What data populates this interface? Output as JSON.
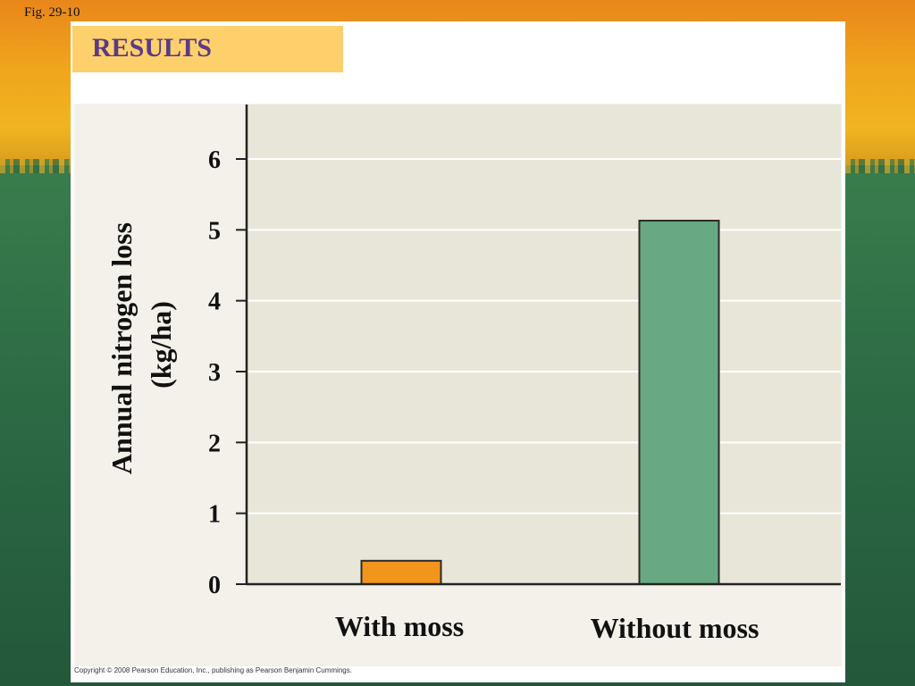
{
  "figure_label": "Fig. 29-10",
  "heading": "RESULTS",
  "copyright": "Copyright © 2008 Pearson Education, Inc., publishing as Pearson Benjamin Cummings.",
  "colors": {
    "plot_bg": "#e7e6d9",
    "gridline": "#ffffff",
    "axis": "#222222",
    "with_moss_bar": "#f2951d",
    "without_moss_bar": "#68a983",
    "heading_box": "#fdd06b",
    "heading_text": "#5a3a86"
  },
  "chart_data": {
    "type": "bar",
    "categories": [
      "With moss",
      "Without moss"
    ],
    "values": [
      0.33,
      5.13
    ],
    "ylabel_lines": [
      "Annual nitrogen loss",
      "(kg/ha)"
    ],
    "ylim": [
      0,
      6.8
    ],
    "yticks": [
      0,
      1,
      2,
      3,
      4,
      5,
      6
    ],
    "grid": true
  }
}
